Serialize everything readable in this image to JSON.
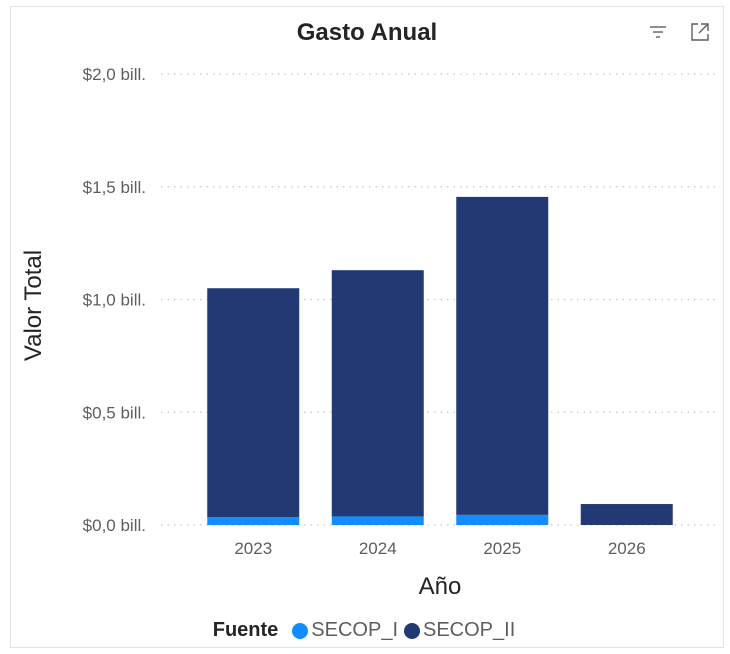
{
  "visual": {
    "title": "Gasto Anual",
    "icons": [
      "filter-icon",
      "focus-mode-icon"
    ]
  },
  "legend": {
    "title": "Fuente",
    "items": [
      {
        "label": "SECOP_I",
        "color": "#118dff"
      },
      {
        "label": "SECOP_II",
        "color": "#223974"
      }
    ]
  },
  "chart_data": {
    "type": "bar",
    "stacked": true,
    "title": "Gasto Anual",
    "xlabel": "Año",
    "ylabel": "Valor Total",
    "categories": [
      "2023",
      "2024",
      "2025",
      "2026"
    ],
    "series": [
      {
        "name": "SECOP_I",
        "color": "#118dff",
        "values": [
          0.035,
          0.038,
          0.045,
          0.0
        ]
      },
      {
        "name": "SECOP_II",
        "color": "#223974",
        "values": [
          1.015,
          1.092,
          1.41,
          0.093
        ]
      }
    ],
    "ylim": [
      0,
      2.0
    ],
    "yticks": [
      0.0,
      0.5,
      1.0,
      1.5,
      2.0
    ],
    "ytick_labels": [
      "$0,0 bill.",
      "$0,5 bill.",
      "$1,0 bill.",
      "$1,5 bill.",
      "$2,0 bill."
    ],
    "grid": true,
    "legend_position": "bottom-center"
  }
}
